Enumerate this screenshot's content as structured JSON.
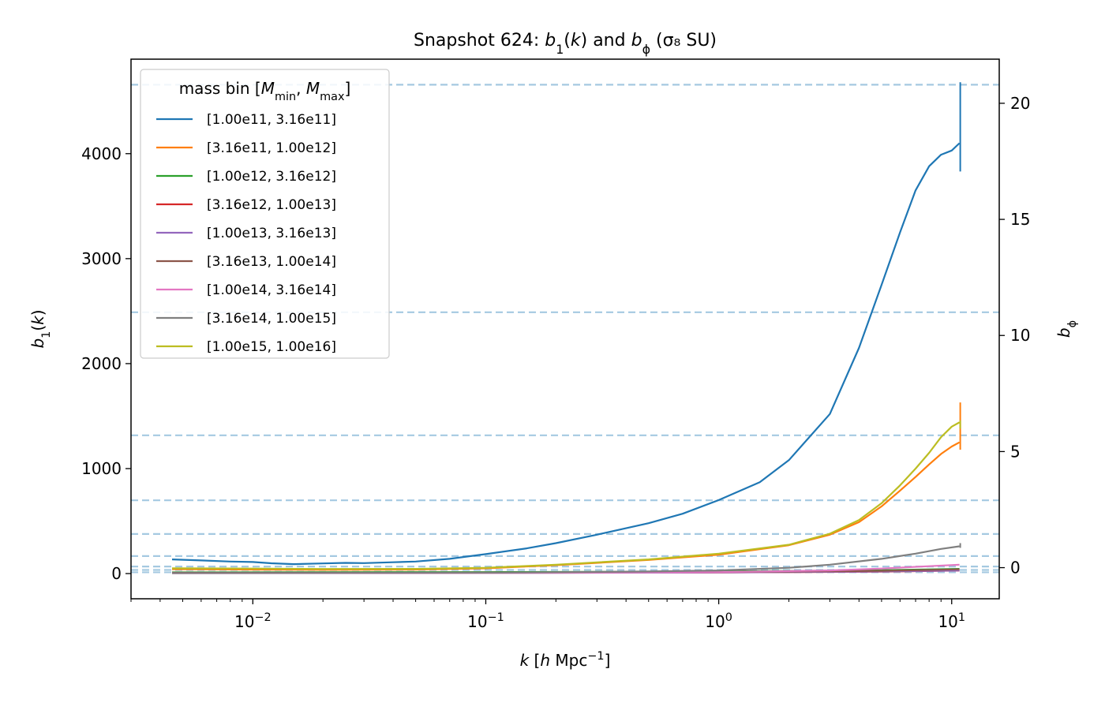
{
  "chart_data": {
    "type": "line",
    "title": "Snapshot 624: b₁(k) and b_ϕ (σ₈ SU)",
    "xlabel": "k [h Mpc⁻¹]",
    "ylabel": "b₁(k)",
    "ylabel_right": "b_ϕ",
    "xscale": "log",
    "xlim": [
      0.003,
      16
    ],
    "ylim": [
      -240,
      4900
    ],
    "ylim_right": [
      -1.34,
      21.9
    ],
    "x_ticks": [
      {
        "value": 0.01,
        "base": "10",
        "exp": "−2"
      },
      {
        "value": 0.1,
        "base": "10",
        "exp": "−1"
      },
      {
        "value": 1,
        "base": "10",
        "exp": "0"
      },
      {
        "value": 10,
        "base": "10",
        "exp": "1"
      }
    ],
    "y_ticks": [
      "0",
      "1000",
      "2000",
      "3000",
      "4000"
    ],
    "y_ticks_right": [
      "0",
      "5",
      "10",
      "15",
      "20"
    ],
    "legend": {
      "title": "mass bin [M_min, M_max]",
      "position": "upper left"
    },
    "series": [
      {
        "name": "[1.00e11, 3.16e11]",
        "color": "#1f77b4",
        "points": [
          [
            0.0045,
            135
          ],
          [
            0.006,
            125
          ],
          [
            0.008,
            115
          ],
          [
            0.01,
            110
          ],
          [
            0.012,
            98
          ],
          [
            0.015,
            90
          ],
          [
            0.02,
            97
          ],
          [
            0.025,
            102
          ],
          [
            0.03,
            100
          ],
          [
            0.04,
            108
          ],
          [
            0.05,
            115
          ],
          [
            0.07,
            140
          ],
          [
            0.1,
            185
          ],
          [
            0.15,
            240
          ],
          [
            0.2,
            290
          ],
          [
            0.3,
            370
          ],
          [
            0.5,
            480
          ],
          [
            0.7,
            570
          ],
          [
            1,
            700
          ],
          [
            1.5,
            870
          ],
          [
            2,
            1080
          ],
          [
            3,
            1520
          ],
          [
            4,
            2150
          ],
          [
            5,
            2750
          ],
          [
            6,
            3250
          ],
          [
            7,
            3650
          ],
          [
            8,
            3880
          ],
          [
            9,
            3990
          ],
          [
            10,
            4030
          ],
          [
            10.8,
            4100
          ]
        ],
        "end_spike": [
          3830,
          4680
        ]
      },
      {
        "name": "[3.16e11, 1.00e12]",
        "color": "#ff7f0e",
        "points": [
          [
            0.0045,
            42
          ],
          [
            0.01,
            38
          ],
          [
            0.02,
            36
          ],
          [
            0.05,
            38
          ],
          [
            0.1,
            50
          ],
          [
            0.2,
            80
          ],
          [
            0.5,
            130
          ],
          [
            1,
            180
          ],
          [
            2,
            270
          ],
          [
            3,
            370
          ],
          [
            4,
            490
          ],
          [
            5,
            640
          ],
          [
            6,
            790
          ],
          [
            7,
            920
          ],
          [
            8,
            1040
          ],
          [
            9,
            1140
          ],
          [
            10,
            1210
          ],
          [
            10.8,
            1250
          ]
        ],
        "end_spike": [
          1180,
          1630
        ]
      },
      {
        "name": "[1.00e12, 3.16e12]",
        "color": "#2ca02c",
        "points": [
          [
            0.0045,
            12
          ],
          [
            0.1,
            14
          ],
          [
            1,
            20
          ],
          [
            5,
            32
          ],
          [
            10.8,
            45
          ]
        ]
      },
      {
        "name": "[3.16e12, 1.00e13]",
        "color": "#d62728",
        "points": [
          [
            0.0045,
            6
          ],
          [
            0.1,
            7
          ],
          [
            1,
            10
          ],
          [
            5,
            18
          ],
          [
            10.8,
            28
          ]
        ]
      },
      {
        "name": "[1.00e13, 3.16e13]",
        "color": "#9467bd",
        "points": [
          [
            0.0045,
            5
          ],
          [
            0.1,
            6
          ],
          [
            1,
            10
          ],
          [
            5,
            20
          ],
          [
            10.8,
            30
          ]
        ]
      },
      {
        "name": "[3.16e13, 1.00e14]",
        "color": "#8c564b",
        "points": [
          [
            0.0045,
            8
          ],
          [
            0.1,
            9
          ],
          [
            1,
            14
          ],
          [
            5,
            26
          ],
          [
            10.8,
            40
          ]
        ]
      },
      {
        "name": "[1.00e14, 3.16e14]",
        "color": "#e377c2",
        "points": [
          [
            0.0045,
            3
          ],
          [
            0.1,
            5
          ],
          [
            1,
            14
          ],
          [
            3,
            30
          ],
          [
            5,
            48
          ],
          [
            8,
            70
          ],
          [
            10.8,
            85
          ]
        ]
      },
      {
        "name": "[3.16e14, 1.00e15]",
        "color": "#7f7f7f",
        "points": [
          [
            0.0045,
            4
          ],
          [
            0.1,
            8
          ],
          [
            0.5,
            20
          ],
          [
            1,
            30
          ],
          [
            2,
            55
          ],
          [
            3,
            85
          ],
          [
            5,
            140
          ],
          [
            7,
            190
          ],
          [
            9,
            235
          ],
          [
            10.8,
            260
          ]
        ],
        "end_spike": [
          245,
          290
        ]
      },
      {
        "name": "[1.00e15, 1.00e16]",
        "color": "#bcbd22",
        "points": [
          [
            0.0045,
            50
          ],
          [
            0.01,
            48
          ],
          [
            0.02,
            44
          ],
          [
            0.05,
            45
          ],
          [
            0.1,
            55
          ],
          [
            0.2,
            85
          ],
          [
            0.5,
            135
          ],
          [
            1,
            190
          ],
          [
            2,
            275
          ],
          [
            3,
            380
          ],
          [
            4,
            510
          ],
          [
            5,
            670
          ],
          [
            6,
            840
          ],
          [
            7,
            1000
          ],
          [
            8,
            1150
          ],
          [
            9,
            1300
          ],
          [
            10,
            1400
          ],
          [
            10.8,
            1440
          ]
        ],
        "end_spike": [
          1380,
          1460
        ]
      }
    ],
    "b_phi_hlines": {
      "color": "#1f77b4",
      "alpha": 0.4,
      "values": [
        20.8,
        11.0,
        5.7,
        2.9,
        1.45,
        0.5,
        0.05,
        -0.1,
        -0.2
      ]
    }
  }
}
